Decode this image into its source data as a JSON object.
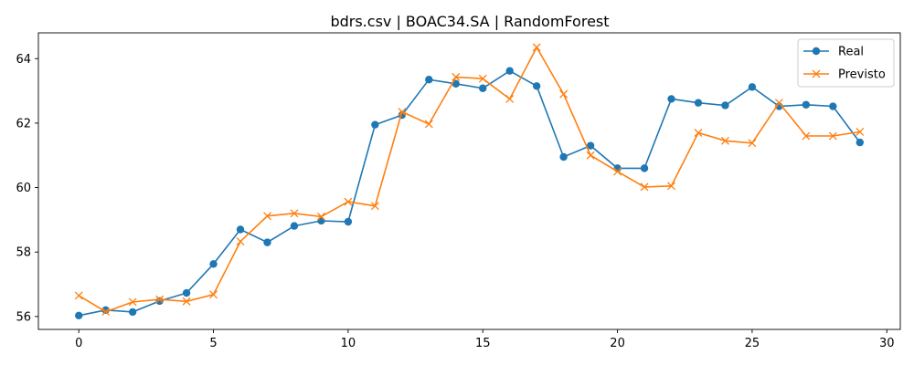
{
  "chart_data": {
    "type": "line",
    "title": "bdrs.csv | BOAC34.SA | RandomForest",
    "xlabel": "",
    "ylabel": "",
    "xlim": [
      -1.5,
      30.5
    ],
    "ylim": [
      55.6,
      64.8
    ],
    "x_ticks": [
      0,
      5,
      10,
      15,
      20,
      25,
      30
    ],
    "y_ticks": [
      56,
      58,
      60,
      62,
      64
    ],
    "grid": false,
    "legend_position": "top-right",
    "x": [
      0,
      1,
      2,
      3,
      4,
      5,
      6,
      7,
      8,
      9,
      10,
      11,
      12,
      13,
      14,
      15,
      16,
      17,
      18,
      19,
      20,
      21,
      22,
      23,
      24,
      25,
      26,
      27,
      28,
      29
    ],
    "series": [
      {
        "name": "Real",
        "color": "#1f77b4",
        "marker": "circle",
        "values": [
          56.03,
          56.2,
          56.14,
          56.48,
          56.73,
          57.63,
          58.7,
          58.3,
          58.81,
          58.97,
          58.94,
          61.95,
          62.25,
          63.35,
          63.22,
          63.08,
          63.62,
          63.15,
          60.95,
          61.3,
          60.6,
          60.6,
          62.75,
          62.63,
          62.55,
          63.12,
          62.52,
          62.57,
          62.52,
          61.4
        ]
      },
      {
        "name": "Previsto",
        "color": "#ff7f0e",
        "marker": "x",
        "values": [
          56.65,
          56.15,
          56.45,
          56.53,
          56.47,
          56.68,
          58.33,
          59.12,
          59.2,
          59.1,
          59.56,
          59.43,
          62.35,
          61.97,
          63.43,
          63.38,
          62.75,
          64.35,
          62.9,
          61.0,
          60.5,
          60.02,
          60.05,
          61.7,
          61.45,
          61.38,
          62.63,
          61.6,
          61.6,
          61.73
        ]
      }
    ]
  }
}
